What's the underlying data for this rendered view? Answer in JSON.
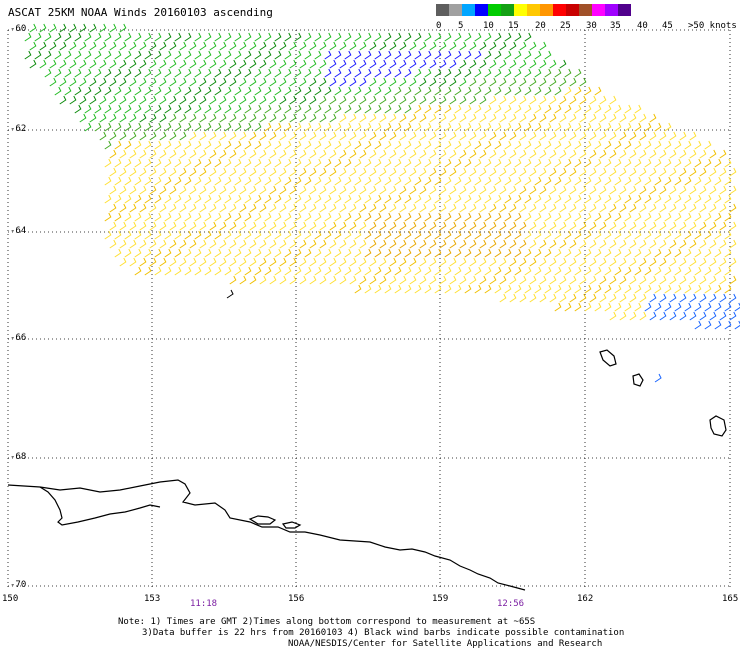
{
  "title": "ASCAT 25KM NOAA Winds 20160103 ascending",
  "legend": {
    "colors": [
      "#5e5e5e",
      "#a0a0a0",
      "#00a5ff",
      "#0000ff",
      "#00cc00",
      "#14a014",
      "#ffff00",
      "#ffc800",
      "#ff9600",
      "#ff0000",
      "#c80000",
      "#a05028",
      "#ff00ff",
      "#a000ff",
      "#50008c"
    ],
    "labels": [
      "0",
      "5",
      "10",
      "15",
      "20",
      "25",
      "30",
      "35",
      "40",
      "45",
      ">50 knots"
    ]
  },
  "axes": {
    "lat_labels": [
      "-60",
      "-62",
      "-64",
      "-66",
      "-68",
      "-70"
    ],
    "lon_labels": [
      "150",
      "153",
      "156",
      "159",
      "162",
      "165"
    ]
  },
  "times": [
    "11:18",
    "12:56"
  ],
  "notes": {
    "line1": "Note: 1) Times are GMT 2)Times along bottom correspond to measurement at ~65S",
    "line2": "3)Data buffer is 22 hrs from 20160103 4) Black wind barbs indicate possible contamination",
    "line3": "NOAA/NESDIS/Center for Satellite Applications and Research"
  }
}
